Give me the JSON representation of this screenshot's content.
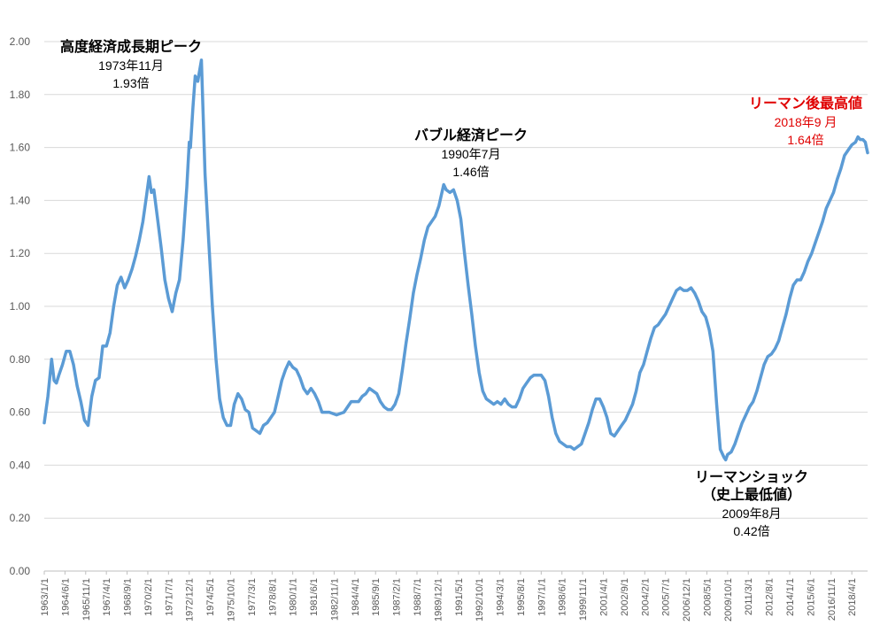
{
  "chart_data": {
    "type": "line",
    "title": "",
    "xlabel": "",
    "ylabel": "",
    "ylim": [
      0,
      2.0
    ],
    "y_ticks": [
      "0.00",
      "0.20",
      "0.40",
      "0.60",
      "0.80",
      "1.00",
      "1.20",
      "1.40",
      "1.60",
      "1.80",
      "2.00"
    ],
    "x_ticks": [
      "1963/1/1",
      "1964/6/1",
      "1965/11/1",
      "1967/4/1",
      "1968/9/1",
      "1970/2/1",
      "1971/7/1",
      "1972/12/1",
      "1974/5/1",
      "1975/10/1",
      "1977/3/1",
      "1978/8/1",
      "1980/1/1",
      "1981/6/1",
      "1982/11/1",
      "1984/4/1",
      "1985/9/1",
      "1987/2/1",
      "1988/7/1",
      "1989/12/1",
      "1991/5/1",
      "1992/10/1",
      "1994/3/1",
      "1995/8/1",
      "1997/1/1",
      "1998/6/1",
      "1999/11/1",
      "2001/4/1",
      "2002/9/1",
      "2004/2/1",
      "2005/7/1",
      "2006/12/1",
      "2008/5/1",
      "2009/10/1",
      "2011/3/1",
      "2012/8/1",
      "2014/1/1",
      "2015/6/1",
      "2016/11/1",
      "2018/4/1"
    ],
    "grid": true,
    "series_color": "#5b9bd5",
    "series": [
      {
        "name": "",
        "points": [
          [
            1963.0,
            0.56
          ],
          [
            1963.25,
            0.66
          ],
          [
            1963.5,
            0.8
          ],
          [
            1963.67,
            0.72
          ],
          [
            1963.83,
            0.71
          ],
          [
            1964.0,
            0.74
          ],
          [
            1964.25,
            0.78
          ],
          [
            1964.5,
            0.83
          ],
          [
            1964.75,
            0.83
          ],
          [
            1965.0,
            0.78
          ],
          [
            1965.25,
            0.7
          ],
          [
            1965.5,
            0.64
          ],
          [
            1965.75,
            0.57
          ],
          [
            1966.0,
            0.55
          ],
          [
            1966.25,
            0.66
          ],
          [
            1966.5,
            0.72
          ],
          [
            1966.75,
            0.73
          ],
          [
            1967.0,
            0.85
          ],
          [
            1967.25,
            0.85
          ],
          [
            1967.5,
            0.9
          ],
          [
            1967.75,
            1.0
          ],
          [
            1968.0,
            1.08
          ],
          [
            1968.25,
            1.11
          ],
          [
            1968.5,
            1.07
          ],
          [
            1968.75,
            1.1
          ],
          [
            1969.0,
            1.14
          ],
          [
            1969.25,
            1.19
          ],
          [
            1969.5,
            1.25
          ],
          [
            1969.75,
            1.32
          ],
          [
            1970.0,
            1.42
          ],
          [
            1970.17,
            1.49
          ],
          [
            1970.33,
            1.43
          ],
          [
            1970.5,
            1.44
          ],
          [
            1970.75,
            1.33
          ],
          [
            1971.0,
            1.22
          ],
          [
            1971.25,
            1.1
          ],
          [
            1971.5,
            1.03
          ],
          [
            1971.75,
            0.98
          ],
          [
            1972.0,
            1.05
          ],
          [
            1972.25,
            1.1
          ],
          [
            1972.5,
            1.25
          ],
          [
            1972.75,
            1.45
          ],
          [
            1972.92,
            1.62
          ],
          [
            1973.0,
            1.6
          ],
          [
            1973.17,
            1.75
          ],
          [
            1973.33,
            1.87
          ],
          [
            1973.5,
            1.85
          ],
          [
            1973.75,
            1.93
          ],
          [
            1974.0,
            1.5
          ],
          [
            1974.25,
            1.25
          ],
          [
            1974.5,
            1.0
          ],
          [
            1974.75,
            0.8
          ],
          [
            1975.0,
            0.65
          ],
          [
            1975.25,
            0.58
          ],
          [
            1975.5,
            0.55
          ],
          [
            1975.75,
            0.55
          ],
          [
            1976.0,
            0.63
          ],
          [
            1976.25,
            0.67
          ],
          [
            1976.5,
            0.65
          ],
          [
            1976.75,
            0.61
          ],
          [
            1977.0,
            0.6
          ],
          [
            1977.25,
            0.54
          ],
          [
            1977.5,
            0.53
          ],
          [
            1977.75,
            0.52
          ],
          [
            1978.0,
            0.55
          ],
          [
            1978.25,
            0.56
          ],
          [
            1978.5,
            0.58
          ],
          [
            1978.75,
            0.6
          ],
          [
            1979.0,
            0.66
          ],
          [
            1979.25,
            0.72
          ],
          [
            1979.5,
            0.76
          ],
          [
            1979.75,
            0.79
          ],
          [
            1980.0,
            0.77
          ],
          [
            1980.25,
            0.76
          ],
          [
            1980.5,
            0.73
          ],
          [
            1980.75,
            0.69
          ],
          [
            1981.0,
            0.67
          ],
          [
            1981.25,
            0.69
          ],
          [
            1981.5,
            0.67
          ],
          [
            1981.75,
            0.64
          ],
          [
            1982.0,
            0.6
          ],
          [
            1982.5,
            0.6
          ],
          [
            1983.0,
            0.59
          ],
          [
            1983.5,
            0.6
          ],
          [
            1983.75,
            0.62
          ],
          [
            1984.0,
            0.64
          ],
          [
            1984.5,
            0.64
          ],
          [
            1984.75,
            0.66
          ],
          [
            1985.0,
            0.67
          ],
          [
            1985.25,
            0.69
          ],
          [
            1985.5,
            0.68
          ],
          [
            1985.75,
            0.67
          ],
          [
            1986.0,
            0.64
          ],
          [
            1986.25,
            0.62
          ],
          [
            1986.5,
            0.61
          ],
          [
            1986.75,
            0.61
          ],
          [
            1987.0,
            0.63
          ],
          [
            1987.25,
            0.67
          ],
          [
            1987.5,
            0.76
          ],
          [
            1987.75,
            0.86
          ],
          [
            1988.0,
            0.95
          ],
          [
            1988.25,
            1.05
          ],
          [
            1988.5,
            1.12
          ],
          [
            1988.75,
            1.18
          ],
          [
            1989.0,
            1.25
          ],
          [
            1989.25,
            1.3
          ],
          [
            1989.5,
            1.32
          ],
          [
            1989.75,
            1.34
          ],
          [
            1990.0,
            1.38
          ],
          [
            1990.33,
            1.46
          ],
          [
            1990.5,
            1.44
          ],
          [
            1990.75,
            1.43
          ],
          [
            1991.0,
            1.44
          ],
          [
            1991.25,
            1.4
          ],
          [
            1991.5,
            1.33
          ],
          [
            1991.75,
            1.2
          ],
          [
            1992.0,
            1.08
          ],
          [
            1992.25,
            0.97
          ],
          [
            1992.5,
            0.85
          ],
          [
            1992.75,
            0.75
          ],
          [
            1993.0,
            0.68
          ],
          [
            1993.25,
            0.65
          ],
          [
            1993.5,
            0.64
          ],
          [
            1993.75,
            0.63
          ],
          [
            1994.0,
            0.64
          ],
          [
            1994.25,
            0.63
          ],
          [
            1994.5,
            0.65
          ],
          [
            1994.75,
            0.63
          ],
          [
            1995.0,
            0.62
          ],
          [
            1995.25,
            0.62
          ],
          [
            1995.5,
            0.65
          ],
          [
            1995.75,
            0.69
          ],
          [
            1996.0,
            0.71
          ],
          [
            1996.25,
            0.73
          ],
          [
            1996.5,
            0.74
          ],
          [
            1996.75,
            0.74
          ],
          [
            1997.0,
            0.74
          ],
          [
            1997.25,
            0.72
          ],
          [
            1997.5,
            0.66
          ],
          [
            1997.75,
            0.58
          ],
          [
            1998.0,
            0.52
          ],
          [
            1998.25,
            0.49
          ],
          [
            1998.5,
            0.48
          ],
          [
            1998.75,
            0.47
          ],
          [
            1999.0,
            0.47
          ],
          [
            1999.25,
            0.46
          ],
          [
            1999.5,
            0.47
          ],
          [
            1999.75,
            0.48
          ],
          [
            2000.0,
            0.52
          ],
          [
            2000.25,
            0.56
          ],
          [
            2000.5,
            0.61
          ],
          [
            2000.75,
            0.65
          ],
          [
            2001.0,
            0.65
          ],
          [
            2001.25,
            0.62
          ],
          [
            2001.5,
            0.58
          ],
          [
            2001.75,
            0.52
          ],
          [
            2002.0,
            0.51
          ],
          [
            2002.25,
            0.53
          ],
          [
            2002.5,
            0.55
          ],
          [
            2002.75,
            0.57
          ],
          [
            2003.0,
            0.6
          ],
          [
            2003.25,
            0.63
          ],
          [
            2003.5,
            0.68
          ],
          [
            2003.75,
            0.75
          ],
          [
            2004.0,
            0.78
          ],
          [
            2004.25,
            0.83
          ],
          [
            2004.5,
            0.88
          ],
          [
            2004.75,
            0.92
          ],
          [
            2005.0,
            0.93
          ],
          [
            2005.25,
            0.95
          ],
          [
            2005.5,
            0.97
          ],
          [
            2005.75,
            1.0
          ],
          [
            2006.0,
            1.03
          ],
          [
            2006.25,
            1.06
          ],
          [
            2006.5,
            1.07
          ],
          [
            2006.75,
            1.06
          ],
          [
            2007.0,
            1.06
          ],
          [
            2007.25,
            1.07
          ],
          [
            2007.5,
            1.05
          ],
          [
            2007.75,
            1.02
          ],
          [
            2008.0,
            0.98
          ],
          [
            2008.25,
            0.96
          ],
          [
            2008.5,
            0.91
          ],
          [
            2008.75,
            0.83
          ],
          [
            2009.0,
            0.63
          ],
          [
            2009.25,
            0.46
          ],
          [
            2009.5,
            0.43
          ],
          [
            2009.62,
            0.42
          ],
          [
            2009.75,
            0.44
          ],
          [
            2010.0,
            0.45
          ],
          [
            2010.25,
            0.48
          ],
          [
            2010.5,
            0.52
          ],
          [
            2010.75,
            0.56
          ],
          [
            2011.0,
            0.59
          ],
          [
            2011.25,
            0.62
          ],
          [
            2011.5,
            0.64
          ],
          [
            2011.75,
            0.68
          ],
          [
            2012.0,
            0.73
          ],
          [
            2012.25,
            0.78
          ],
          [
            2012.5,
            0.81
          ],
          [
            2012.75,
            0.82
          ],
          [
            2013.0,
            0.84
          ],
          [
            2013.25,
            0.87
          ],
          [
            2013.5,
            0.92
          ],
          [
            2013.75,
            0.97
          ],
          [
            2014.0,
            1.03
          ],
          [
            2014.25,
            1.08
          ],
          [
            2014.5,
            1.1
          ],
          [
            2014.75,
            1.1
          ],
          [
            2015.0,
            1.13
          ],
          [
            2015.25,
            1.17
          ],
          [
            2015.5,
            1.2
          ],
          [
            2015.75,
            1.24
          ],
          [
            2016.0,
            1.28
          ],
          [
            2016.25,
            1.32
          ],
          [
            2016.5,
            1.37
          ],
          [
            2016.75,
            1.4
          ],
          [
            2017.0,
            1.43
          ],
          [
            2017.25,
            1.48
          ],
          [
            2017.5,
            1.52
          ],
          [
            2017.75,
            1.57
          ],
          [
            2018.0,
            1.59
          ],
          [
            2018.25,
            1.61
          ],
          [
            2018.5,
            1.62
          ],
          [
            2018.67,
            1.64
          ],
          [
            2018.83,
            1.63
          ],
          [
            2019.0,
            1.63
          ],
          [
            2019.17,
            1.62
          ],
          [
            2019.33,
            1.58
          ]
        ]
      }
    ],
    "annotations": [
      {
        "id": "peak1973",
        "lines": [
          "高度経済成長期ピーク",
          "1973年11月",
          "1.93倍"
        ],
        "color": "#000000"
      },
      {
        "id": "bubble1990",
        "lines": [
          "バブル経済ピーク",
          "1990年7月",
          "1.46倍"
        ],
        "color": "#000000"
      },
      {
        "id": "lehman2018",
        "lines": [
          "リーマン後最高値",
          "2018年9 月",
          "1.64倍"
        ],
        "color": "#e00000"
      },
      {
        "id": "lehman2009",
        "lines": [
          "リーマンショック",
          "（史上最低値）",
          "2009年8月",
          "0.42倍"
        ],
        "color": "#000000"
      }
    ]
  }
}
